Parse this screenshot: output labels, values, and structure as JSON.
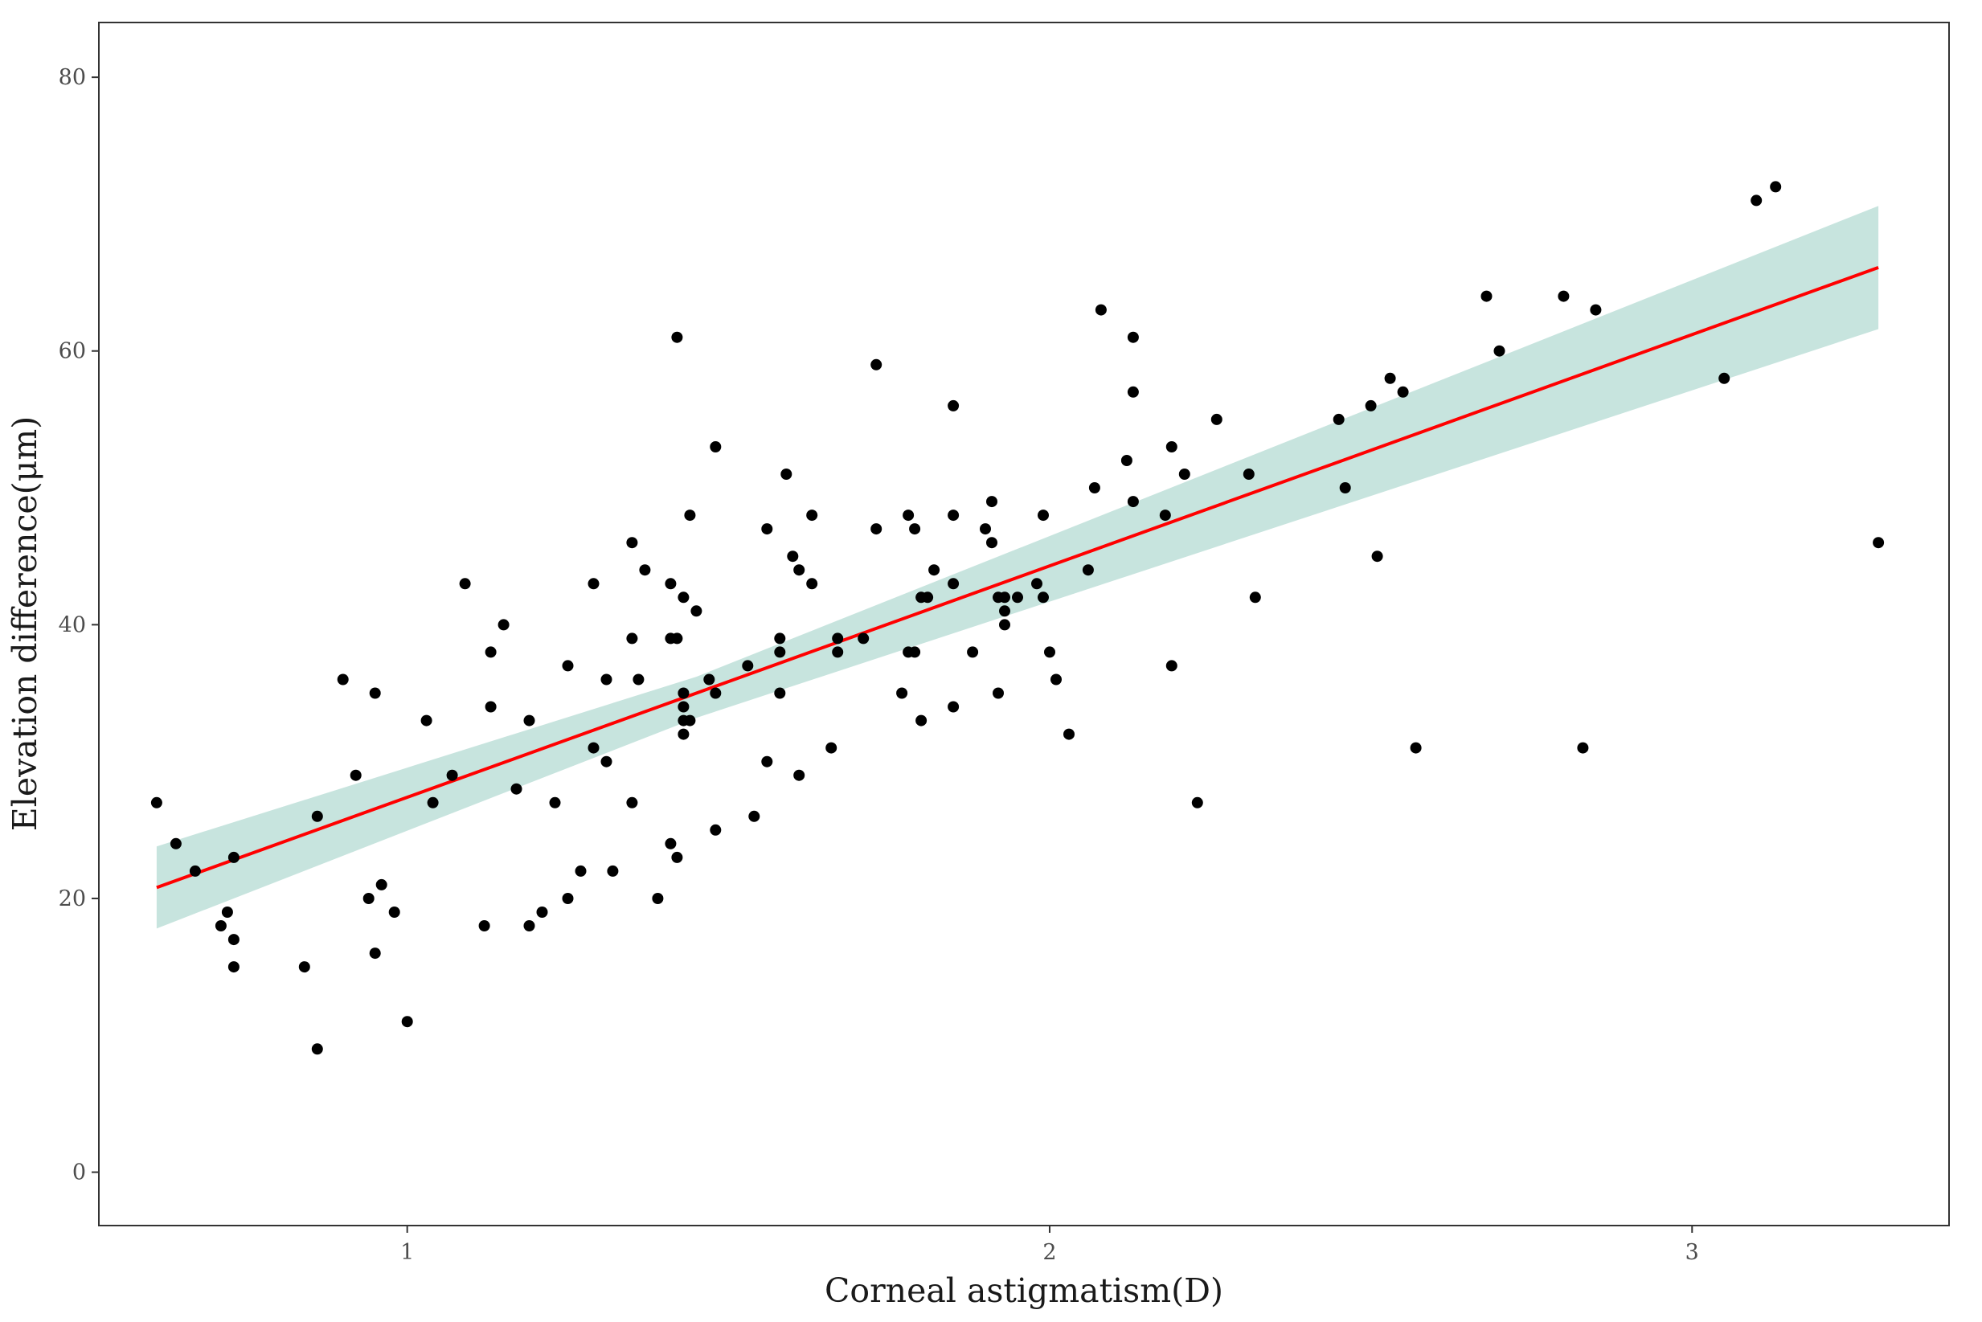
{
  "chart_data": {
    "type": "scatter",
    "title": "",
    "xlabel": "Corneal astigmatism(D)",
    "ylabel": "Elevation difference(μm)",
    "xlim": [
      0.52,
      3.4
    ],
    "ylim": [
      -3.9,
      84
    ],
    "x_ticks": [
      1,
      2,
      3
    ],
    "y_ticks": [
      0,
      20,
      40,
      60,
      80
    ],
    "grid": false,
    "legend": "none",
    "colors": {
      "points": "#000000",
      "fit_line": "#ff0000",
      "confidence_band": "#a9d5cc",
      "panel_border": "#333333",
      "tick_labels": "#4d4d4d"
    },
    "series": [
      {
        "type": "scatter",
        "points": [
          [
            0.61,
            27
          ],
          [
            0.64,
            24
          ],
          [
            0.67,
            22
          ],
          [
            0.71,
            18
          ],
          [
            0.72,
            19
          ],
          [
            0.73,
            23
          ],
          [
            0.73,
            17
          ],
          [
            0.73,
            15
          ],
          [
            0.84,
            15
          ],
          [
            0.86,
            26
          ],
          [
            0.86,
            9
          ],
          [
            0.9,
            36
          ],
          [
            0.92,
            29
          ],
          [
            0.94,
            20
          ],
          [
            0.95,
            35
          ],
          [
            0.95,
            16
          ],
          [
            0.96,
            21
          ],
          [
            0.98,
            19
          ],
          [
            1.0,
            11
          ],
          [
            1.03,
            33
          ],
          [
            1.04,
            27
          ],
          [
            1.07,
            29
          ],
          [
            1.09,
            43
          ],
          [
            1.12,
            18
          ],
          [
            1.13,
            38
          ],
          [
            1.13,
            34
          ],
          [
            1.15,
            40
          ],
          [
            1.17,
            28
          ],
          [
            1.19,
            33
          ],
          [
            1.19,
            18
          ],
          [
            1.21,
            19
          ],
          [
            1.23,
            27
          ],
          [
            1.25,
            37
          ],
          [
            1.25,
            20
          ],
          [
            1.27,
            22
          ],
          [
            1.29,
            43
          ],
          [
            1.29,
            31
          ],
          [
            1.31,
            36
          ],
          [
            1.31,
            30
          ],
          [
            1.32,
            22
          ],
          [
            1.35,
            46
          ],
          [
            1.35,
            39
          ],
          [
            1.35,
            27
          ],
          [
            1.36,
            36
          ],
          [
            1.37,
            44
          ],
          [
            1.39,
            20
          ],
          [
            1.41,
            43
          ],
          [
            1.41,
            39
          ],
          [
            1.41,
            24
          ],
          [
            1.42,
            61
          ],
          [
            1.42,
            39
          ],
          [
            1.42,
            23
          ],
          [
            1.43,
            42
          ],
          [
            1.43,
            35
          ],
          [
            1.43,
            34
          ],
          [
            1.43,
            33
          ],
          [
            1.43,
            32
          ],
          [
            1.44,
            48
          ],
          [
            1.44,
            33
          ],
          [
            1.45,
            41
          ],
          [
            1.47,
            36
          ],
          [
            1.48,
            53
          ],
          [
            1.48,
            35
          ],
          [
            1.48,
            25
          ],
          [
            1.53,
            37
          ],
          [
            1.54,
            26
          ],
          [
            1.56,
            47
          ],
          [
            1.56,
            30
          ],
          [
            1.58,
            39
          ],
          [
            1.58,
            38
          ],
          [
            1.58,
            35
          ],
          [
            1.59,
            51
          ],
          [
            1.6,
            45
          ],
          [
            1.61,
            44
          ],
          [
            1.61,
            29
          ],
          [
            1.63,
            48
          ],
          [
            1.63,
            43
          ],
          [
            1.66,
            31
          ],
          [
            1.67,
            39
          ],
          [
            1.67,
            38
          ],
          [
            1.71,
            39
          ],
          [
            1.73,
            59
          ],
          [
            1.73,
            47
          ],
          [
            1.77,
            35
          ],
          [
            1.78,
            48
          ],
          [
            1.78,
            38
          ],
          [
            1.79,
            47
          ],
          [
            1.79,
            38
          ],
          [
            1.8,
            42
          ],
          [
            1.8,
            33
          ],
          [
            1.81,
            42
          ],
          [
            1.82,
            44
          ],
          [
            1.85,
            56
          ],
          [
            1.85,
            48
          ],
          [
            1.85,
            43
          ],
          [
            1.85,
            34
          ],
          [
            1.88,
            38
          ],
          [
            1.9,
            47
          ],
          [
            1.91,
            49
          ],
          [
            1.91,
            46
          ],
          [
            1.92,
            42
          ],
          [
            1.92,
            35
          ],
          [
            1.93,
            42
          ],
          [
            1.93,
            41
          ],
          [
            1.93,
            40
          ],
          [
            1.95,
            42
          ],
          [
            1.98,
            43
          ],
          [
            1.99,
            48
          ],
          [
            1.99,
            42
          ],
          [
            2.0,
            38
          ],
          [
            2.01,
            36
          ],
          [
            2.03,
            32
          ],
          [
            2.06,
            44
          ],
          [
            2.07,
            50
          ],
          [
            2.08,
            63
          ],
          [
            2.12,
            52
          ],
          [
            2.13,
            61
          ],
          [
            2.13,
            57
          ],
          [
            2.13,
            49
          ],
          [
            2.18,
            48
          ],
          [
            2.19,
            53
          ],
          [
            2.19,
            37
          ],
          [
            2.21,
            51
          ],
          [
            2.23,
            27
          ],
          [
            2.26,
            55
          ],
          [
            2.31,
            51
          ],
          [
            2.32,
            42
          ],
          [
            2.45,
            55
          ],
          [
            2.46,
            50
          ],
          [
            2.5,
            56
          ],
          [
            2.51,
            45
          ],
          [
            2.53,
            58
          ],
          [
            2.55,
            57
          ],
          [
            2.57,
            31
          ],
          [
            2.68,
            64
          ],
          [
            2.7,
            60
          ],
          [
            2.8,
            64
          ],
          [
            2.83,
            31
          ],
          [
            2.85,
            63
          ],
          [
            3.05,
            58
          ],
          [
            3.1,
            71
          ],
          [
            3.13,
            72
          ],
          [
            3.29,
            46
          ]
        ]
      },
      {
        "type": "line",
        "x": [
          0.61,
          3.29
        ],
        "y": [
          20.8,
          66.1
        ]
      },
      {
        "type": "area",
        "x": [
          0.61,
          1.45,
          3.29
        ],
        "upper": [
          23.8,
          36.2,
          70.6
        ],
        "lower": [
          17.8,
          33.2,
          61.6
        ]
      }
    ]
  }
}
